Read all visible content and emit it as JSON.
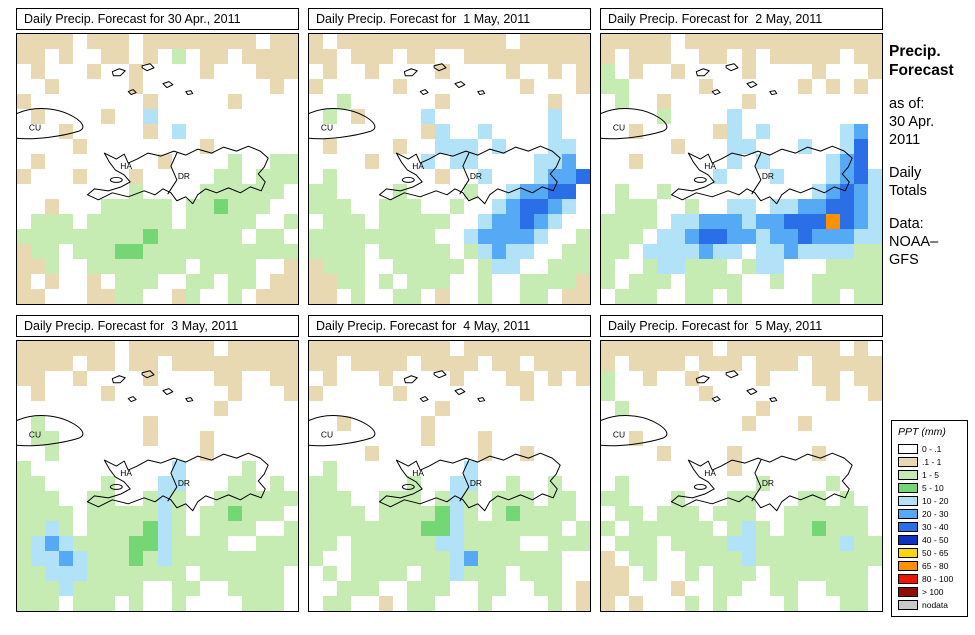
{
  "panels": [
    {
      "title": "Daily Precip. Forecast for 30 Apr., 2011",
      "grid": [
        "tttt.ttt.tttttttt.tt",
        "tt.t..tt.t.g.tt.tttt",
        ".t...t..t....t...ttt",
        "..t.....t.........t.",
        "t........t.....t....",
        ".t....t..c..........",
        "...t.....t.c........",
        "....t........t......",
        ".t........t....g..gg",
        "t...t...t.....gg.ggg",
        "........g....gggggg.",
        "..t...ggggg.ggGggg..",
        ".ggg.gggggg.ggggg..g",
        "gggggggggGgggggg.gg.",
        "tgg.gggGGggggggggggg",
        "ttg..ggggggg.gggg..t",
        "t.t..t.ggg..gg.gg.tt",
        "tt...ttgg..tg..g.ttt"
      ]
    },
    {
      "title": "Daily Precip. Forecast for  1 May, 2011",
      "grid": [
        "t.tttttttttttt.ttttt",
        "tt.ttt.tt..ttttttttt",
        ".t..t....t....t..t.t",
        "t.....t........t...t",
        "..g......t.......t..",
        ".g.t....c........c..",
        "........tc..c....c..",
        ".t....t..ccc.c...cc.",
        "....t...c.cc....ccb.",
        ".g.......t..c...cbbB",
        "gg....g....g..cbbBB.",
        "ggg..ggg..g..cbBBbc.",
        ".ggg.ggggg..cbbBbc..",
        "ggggggggg..cbbbbc..g",
        "gggg.ggggg.gcbcc..gg",
        "tggg..ggggg.gcc..ggg",
        "ttgg.g.ggg..g..ggggt",
        "tt.g..gg.t..g..gg.tt"
      ]
    },
    {
      "title": "Daily Precip. Forecast for  2 May, 2011",
      "grid": [
        "ttttt.tttttttttttttt",
        "t.ttt..tt.t.ttttt.tt",
        "g.t..t....t....t...t",
        "gg.....t......t.t.t.",
        ".g..t.....t.........",
        "....g....c..........",
        "..t.....tc.c.....cb.",
        ".....t...cc...c..cB.",
        "..t......c.c....cbB.",
        "........c...c...cbBc",
        ".g..g..........cbBbc",
        ".ggg..g..cc.ccbbBBbc",
        "gggg.ccbbbcbbBBBoBbc",
        "ggg.ccbBBbbcbbBbbbcc",
        "gg.ccccbcc.ccbccccgg",
        "g..gccggg.gcc...gggg",
        "g.ggg.gggg..g..ggggg",
        ".ggg..gg.g.....gg.gg"
      ]
    },
    {
      "title": "Daily Precip. Forecast for  3 May, 2011",
      "grid": [
        "ttttttt.tttttt.ttttt",
        "tttt.tt.tt.ttttttttt",
        "tt..t....t....tt..tt",
        ".t....t........t...t",
        "..............t.....",
        ".g.......t..........",
        ".gg......t...t......",
        "..g..........t......",
        "g..........c....g...",
        "gg....g...cc...gg.g.",
        "ggg..gg..gcg..gggggg",
        "gggg.gggggcg.ggGggg.",
        "ggcg.ggggGcg.gggg..g",
        "gcbcggggGGcgggg..ggg",
        "gccbcgggGgcggggggggg",
        "ggcccggggggg.gggggg.",
        "gggcggggg..gg..gggg.",
        "ggg.ggg.g..g....ggg."
      ]
    },
    {
      "title": "Daily Precip. Forecast for  4 May, 2011",
      "grid": [
        "tttttttttt.ttttttttt",
        "tt.tttt.tttt.tt.tttt",
        ".t...t....t...tt.t.t",
        "t.....t........t....",
        ".........t..........",
        "..t.....t...........",
        "........t...t.......",
        "....t.......t..t....",
        ".g.........c........",
        "gg.....g..cc..g..g..",
        "ggg..ggg.gcg.ggg.gg.",
        "gggg.ggggGcg.gGgggg.",
        "ggggggggGGcggggggg.g",
        "gg.ggggggccgggg..ggg",
        "g..gggggggcbgggggg..",
        ".g.gggg.ggcggg.ggg..",
        "..ggg..ggg..gg..gg.t",
        ".gg..t.gg...g....g.t"
      ]
    },
    {
      "title": "Daily Precip. Forecast for  5 May, 2011",
      "grid": [
        "tttttttt.tttttttt.t.",
        "t.tttt.ttt.ttt.ttttt",
        "g..t..t....t...tt.tt",
        "g......t........t..t",
        ".g.........t........",
        "..........t...t.....",
        "..t.................",
        "....t....t.....t....",
        ".........t..........",
        ".g.........g....g...",
        "gg...g...gg...gg.g..",
        ".gg.ggg.ggg..gggggg.",
        "g.gggggg.gcg.ggGggg.",
        ".ggg.ggggccggggggcgg",
        "t.gg..ggggcggggggggg",
        "tt.g..g.ggg.ggggggg.",
        "tt...t..gg..gg..ggg.",
        "t.t...g.g....g...gg."
      ]
    }
  ],
  "map_labels": {
    "cuba": "CU",
    "haiti": "HA",
    "dominican_republic": "DR"
  },
  "sidebar": {
    "title_line1": "Precip.",
    "title_line2": "Forecast",
    "as_of_label": "as of:",
    "as_of_date_line1": "30 Apr.",
    "as_of_date_line2": "2011",
    "totals_line1": "Daily",
    "totals_line2": "Totals",
    "data_label": "Data:",
    "data_source_line1": "NOAA–",
    "data_source_line2": "GFS"
  },
  "legend": {
    "title": "PPT (mm)",
    "entries": [
      {
        "label": "0 - .1",
        "color": "#ffffff"
      },
      {
        "label": ".1 - 1",
        "color": "#e9d9b2"
      },
      {
        "label": "1 - 5",
        "color": "#c6ecb4"
      },
      {
        "label": "5 - 10",
        "color": "#74d674"
      },
      {
        "label": "10 - 20",
        "color": "#b2e2f8"
      },
      {
        "label": "20 - 30",
        "color": "#55a9f5"
      },
      {
        "label": "30 - 40",
        "color": "#2a6fe8"
      },
      {
        "label": "40 - 50",
        "color": "#1230c0"
      },
      {
        "label": "50 - 65",
        "color": "#ffd700"
      },
      {
        "label": "65 - 80",
        "color": "#ff9100"
      },
      {
        "label": "80 - 100",
        "color": "#ee1400"
      },
      {
        "label": "> 100",
        "color": "#8e1000"
      },
      {
        "label": "nodata",
        "color": "#c9c9c9"
      }
    ]
  },
  "palette": {
    ".": "#ffffff",
    "t": "#e9d9b2",
    "g": "#c6ecb4",
    "G": "#74d674",
    "c": "#b2e2f8",
    "b": "#55a9f5",
    "B": "#2a6fe8",
    "n": "#1230c0",
    "y": "#ffd700",
    "o": "#ff9100"
  }
}
